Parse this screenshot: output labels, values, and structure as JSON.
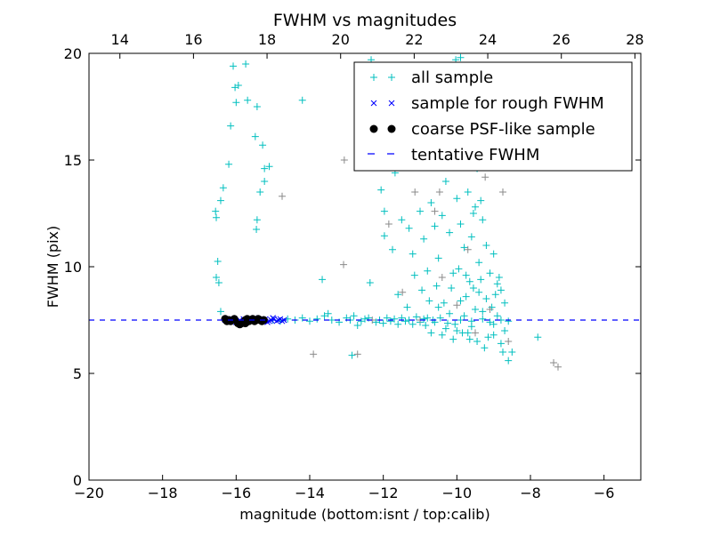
{
  "chart_data": {
    "type": "scatter",
    "title": "FWHM vs magnitudes",
    "xlabel": "magnitude (bottom:isnt / top:calib)",
    "ylabel": "FWHM (pix)",
    "xlim": [
      -20,
      -5
    ],
    "ylim": [
      0,
      20
    ],
    "top_xlim": [
      13.16,
      28.16
    ],
    "x_ticks": [
      -20,
      -18,
      -16,
      -14,
      -12,
      -10,
      -8,
      -6
    ],
    "x_tick_labels": [
      "−20",
      "−18",
      "−16",
      "−14",
      "−12",
      "−10",
      "−8",
      "−6"
    ],
    "top_ticks": [
      14,
      16,
      18,
      20,
      22,
      24,
      26,
      28
    ],
    "top_tick_labels": [
      "14",
      "16",
      "18",
      "20",
      "22",
      "24",
      "26",
      "28"
    ],
    "y_ticks": [
      0,
      5,
      10,
      15,
      20
    ],
    "y_tick_labels": [
      "0",
      "5",
      "10",
      "15",
      "20"
    ],
    "grid": false,
    "legend_position": "top-right",
    "legend": [
      "all sample",
      "sample for rough FWHM",
      "coarse PSF-like sample",
      "tentative FWHM"
    ],
    "tentative_fwhm": 7.5,
    "colors": {
      "all_sample": "#00bfbf",
      "all_sample_faint": "#8a8a8a",
      "rough": "#0000ff",
      "psf": "#000000",
      "tentative": "#0000ff"
    },
    "series": [
      {
        "name": "all sample",
        "marker": "+",
        "points": [
          [
            -16.08,
            19.4
          ],
          [
            -15.74,
            19.5
          ],
          [
            -15.94,
            18.5
          ],
          [
            -16.03,
            18.4
          ],
          [
            -16.0,
            17.7
          ],
          [
            -15.69,
            17.8
          ],
          [
            -15.43,
            17.5
          ],
          [
            -16.15,
            16.6
          ],
          [
            -15.48,
            16.1
          ],
          [
            -15.28,
            15.7
          ],
          [
            -16.2,
            14.8
          ],
          [
            -15.23,
            14.6
          ],
          [
            -15.1,
            14.7
          ],
          [
            -15.23,
            14.0
          ],
          [
            -16.35,
            13.7
          ],
          [
            -15.35,
            13.5
          ],
          [
            -16.42,
            13.1
          ],
          [
            -16.56,
            12.6
          ],
          [
            -16.54,
            12.3
          ],
          [
            -15.43,
            12.2
          ],
          [
            -15.45,
            11.75
          ],
          [
            -16.5,
            10.25
          ],
          [
            -16.54,
            9.5
          ],
          [
            -16.47,
            9.25
          ],
          [
            -16.42,
            7.9
          ],
          [
            -14.2,
            17.8
          ],
          [
            -13.66,
            9.4
          ],
          [
            -12.85,
            5.85
          ],
          [
            -12.36,
            9.25
          ],
          [
            -12.06,
            13.6
          ],
          [
            -11.97,
            12.6
          ],
          [
            -11.97,
            11.45
          ],
          [
            -11.68,
            14.4
          ],
          [
            -10.03,
            19.7
          ],
          [
            -12.33,
            19.7
          ],
          [
            -9.9,
            19.8
          ],
          [
            -11.5,
            12.2
          ],
          [
            -11.3,
            11.8
          ],
          [
            -11.2,
            10.6
          ],
          [
            -11.0,
            12.6
          ],
          [
            -10.9,
            11.3
          ],
          [
            -10.8,
            9.8
          ],
          [
            -10.7,
            13.0
          ],
          [
            -10.6,
            11.9
          ],
          [
            -10.5,
            10.4
          ],
          [
            -10.4,
            12.4
          ],
          [
            -10.3,
            14.0
          ],
          [
            -10.2,
            11.6
          ],
          [
            -10.1,
            9.7
          ],
          [
            -10.0,
            13.2
          ],
          [
            -9.9,
            12.0
          ],
          [
            -9.8,
            10.9
          ],
          [
            -9.7,
            13.5
          ],
          [
            -9.6,
            11.4
          ],
          [
            -9.5,
            12.8
          ],
          [
            -9.4,
            10.2
          ],
          [
            -9.3,
            12.2
          ],
          [
            -9.2,
            11.0
          ],
          [
            -9.1,
            9.7
          ],
          [
            -9.0,
            10.6
          ],
          [
            -8.9,
            9.2
          ],
          [
            -8.8,
            8.9
          ],
          [
            -9.35,
            13.1
          ],
          [
            -9.45,
            14.6
          ],
          [
            -9.55,
            12.5
          ],
          [
            -9.65,
            9.3
          ],
          [
            -9.75,
            8.6
          ],
          [
            -10.15,
            9.0
          ],
          [
            -10.35,
            8.3
          ],
          [
            -10.55,
            9.1
          ],
          [
            -10.75,
            8.4
          ],
          [
            -10.95,
            8.9
          ],
          [
            -11.15,
            9.6
          ],
          [
            -11.35,
            8.1
          ],
          [
            -11.75,
            10.8
          ],
          [
            -11.6,
            8.7
          ],
          [
            -9.2,
            8.5
          ],
          [
            -9.3,
            7.9
          ],
          [
            -9.4,
            8.8
          ],
          [
            -9.5,
            8.0
          ],
          [
            -9.6,
            7.2
          ],
          [
            -9.7,
            6.9
          ],
          [
            -9.8,
            7.7
          ],
          [
            -9.9,
            8.4
          ],
          [
            -10.0,
            7.0
          ],
          [
            -10.1,
            6.6
          ],
          [
            -10.2,
            7.8
          ],
          [
            -10.3,
            7.1
          ],
          [
            -10.4,
            6.8
          ],
          [
            -10.5,
            8.1
          ],
          [
            -10.6,
            7.4
          ],
          [
            -10.7,
            6.9
          ],
          [
            -10.8,
            7.6
          ],
          [
            -9.1,
            7.4
          ],
          [
            -9.0,
            6.8
          ],
          [
            -8.9,
            7.7
          ],
          [
            -8.8,
            6.4
          ],
          [
            -8.7,
            7.0
          ],
          [
            -8.75,
            6.0
          ],
          [
            -8.6,
            5.6
          ],
          [
            -8.5,
            6.0
          ],
          [
            -9.15,
            6.7
          ],
          [
            -9.25,
            6.2
          ],
          [
            -9.45,
            6.5
          ],
          [
            -9.65,
            6.6
          ],
          [
            -9.85,
            6.9
          ],
          [
            -10.05,
            7.3
          ],
          [
            -9.05,
            8.1
          ],
          [
            -8.95,
            8.7
          ],
          [
            -9.35,
            9.4
          ],
          [
            -9.55,
            9.0
          ],
          [
            -9.75,
            9.6
          ],
          [
            -9.95,
            9.9
          ],
          [
            -8.85,
            9.5
          ],
          [
            -8.7,
            8.3
          ],
          [
            -7.8,
            6.7
          ],
          [
            -15.0,
            7.5
          ],
          [
            -14.8,
            7.45
          ],
          [
            -14.6,
            7.55
          ],
          [
            -14.4,
            7.5
          ],
          [
            -14.2,
            7.6
          ],
          [
            -14.0,
            7.45
          ],
          [
            -13.8,
            7.55
          ],
          [
            -13.6,
            7.7
          ],
          [
            -13.4,
            7.5
          ],
          [
            -13.2,
            7.4
          ],
          [
            -13.0,
            7.6
          ],
          [
            -12.9,
            7.5
          ],
          [
            -12.8,
            7.7
          ],
          [
            -12.6,
            7.45
          ],
          [
            -12.5,
            7.55
          ],
          [
            -12.4,
            7.6
          ],
          [
            -12.2,
            7.4
          ],
          [
            -12.1,
            7.5
          ],
          [
            -12.0,
            7.35
          ],
          [
            -11.9,
            7.6
          ],
          [
            -11.8,
            7.45
          ],
          [
            -11.7,
            7.55
          ],
          [
            -11.6,
            7.3
          ],
          [
            -11.5,
            7.6
          ],
          [
            -11.4,
            7.45
          ],
          [
            -11.3,
            7.5
          ],
          [
            -11.2,
            7.3
          ],
          [
            -11.1,
            7.65
          ],
          [
            -11.0,
            7.4
          ],
          [
            -10.9,
            7.55
          ],
          [
            -10.85,
            7.25
          ],
          [
            -10.65,
            7.5
          ],
          [
            -10.45,
            7.6
          ],
          [
            -10.25,
            7.35
          ],
          [
            -9.9,
            7.5
          ],
          [
            -9.6,
            7.45
          ],
          [
            -9.3,
            7.55
          ],
          [
            -9.0,
            7.3
          ],
          [
            -8.8,
            7.5
          ],
          [
            -8.6,
            7.45
          ],
          [
            -13.5,
            7.8
          ],
          [
            -12.7,
            7.25
          ]
        ]
      },
      {
        "name": "all sample (faint)",
        "marker": "+",
        "faint": true,
        "points": [
          [
            -14.75,
            13.3
          ],
          [
            -13.08,
            10.1
          ],
          [
            -13.9,
            5.9
          ],
          [
            -13.06,
            15.0
          ],
          [
            -12.7,
            5.9
          ],
          [
            -11.85,
            12.0
          ],
          [
            -11.48,
            8.8
          ],
          [
            -7.37,
            5.5
          ],
          [
            -7.25,
            5.3
          ],
          [
            -8.75,
            13.5
          ],
          [
            -9.23,
            14.2
          ],
          [
            -10.47,
            13.5
          ],
          [
            -11.14,
            13.5
          ],
          [
            -9.7,
            10.8
          ],
          [
            -10.4,
            9.5
          ],
          [
            -9.1,
            8.0
          ],
          [
            -8.6,
            6.5
          ],
          [
            -9.5,
            6.9
          ],
          [
            -10.0,
            8.2
          ],
          [
            -11.0,
            7.5
          ],
          [
            -12.3,
            7.5
          ],
          [
            -10.6,
            12.6
          ]
        ]
      },
      {
        "name": "sample for rough FWHM",
        "marker": "x",
        "points": [
          [
            -16.3,
            7.5
          ],
          [
            -16.2,
            7.45
          ],
          [
            -16.1,
            7.55
          ],
          [
            -16.0,
            7.4
          ],
          [
            -15.9,
            7.5
          ],
          [
            -15.8,
            7.55
          ],
          [
            -15.7,
            7.45
          ],
          [
            -15.6,
            7.5
          ],
          [
            -15.5,
            7.6
          ],
          [
            -15.4,
            7.45
          ],
          [
            -15.3,
            7.5
          ],
          [
            -15.2,
            7.55
          ],
          [
            -15.1,
            7.45
          ],
          [
            -15.05,
            7.5
          ],
          [
            -14.98,
            7.55
          ],
          [
            -14.9,
            7.45
          ],
          [
            -14.85,
            7.5
          ],
          [
            -14.8,
            7.55
          ],
          [
            -14.75,
            7.45
          ],
          [
            -14.7,
            7.5
          ],
          [
            -15.15,
            7.4
          ],
          [
            -15.0,
            7.6
          ]
        ]
      },
      {
        "name": "coarse PSF-like sample",
        "marker": "o",
        "points": [
          [
            -16.3,
            7.55
          ],
          [
            -16.25,
            7.45
          ],
          [
            -16.2,
            7.5
          ],
          [
            -16.15,
            7.45
          ],
          [
            -16.05,
            7.55
          ],
          [
            -15.95,
            7.35
          ],
          [
            -15.9,
            7.3
          ],
          [
            -15.85,
            7.35
          ],
          [
            -15.8,
            7.4
          ],
          [
            -15.75,
            7.5
          ],
          [
            -15.7,
            7.55
          ],
          [
            -15.65,
            7.45
          ],
          [
            -15.6,
            7.5
          ],
          [
            -15.55,
            7.55
          ],
          [
            -15.5,
            7.45
          ],
          [
            -15.45,
            7.5
          ],
          [
            -15.4,
            7.55
          ],
          [
            -15.35,
            7.5
          ],
          [
            -15.3,
            7.45
          ],
          [
            -15.25,
            7.5
          ],
          [
            -15.75,
            7.35
          ]
        ]
      }
    ]
  }
}
